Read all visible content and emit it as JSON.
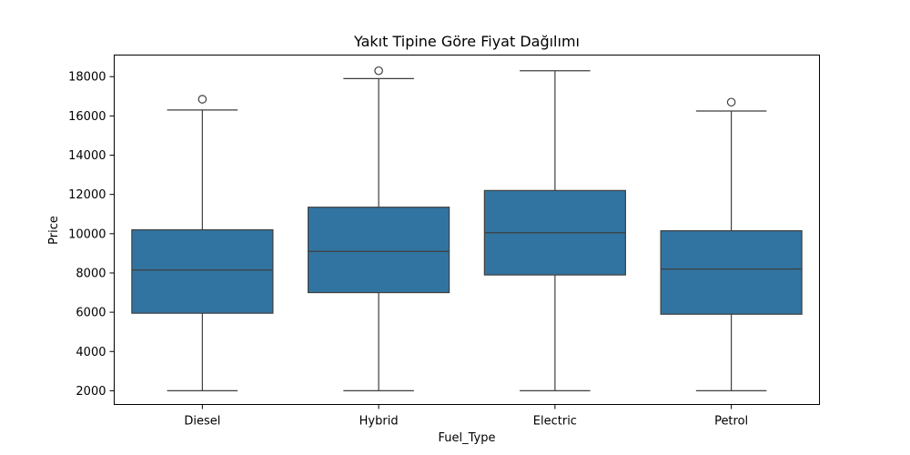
{
  "chart_data": {
    "type": "box",
    "title": "Yakıt Tipine Göre Fiyat Dağılımı",
    "xlabel": "Fuel_Type",
    "ylabel": "Price",
    "ylim": [
      1300,
      19100
    ],
    "yticks": [
      2000,
      4000,
      6000,
      8000,
      10000,
      12000,
      14000,
      16000,
      18000
    ],
    "grid": false,
    "box_color": "#3274a1",
    "line_color": "#3f3f3f",
    "series": [
      {
        "category": "Diesel",
        "whisker_low": 2000,
        "q1": 5950,
        "median": 8150,
        "q3": 10200,
        "whisker_high": 16300,
        "outliers": [
          16850
        ]
      },
      {
        "category": "Hybrid",
        "whisker_low": 2000,
        "q1": 7000,
        "median": 9100,
        "q3": 11350,
        "whisker_high": 17900,
        "outliers": [
          18300
        ]
      },
      {
        "category": "Electric",
        "whisker_low": 2000,
        "q1": 7900,
        "median": 10050,
        "q3": 12200,
        "whisker_high": 18300,
        "outliers": []
      },
      {
        "category": "Petrol",
        "whisker_low": 2000,
        "q1": 5900,
        "median": 8200,
        "q3": 10150,
        "whisker_high": 16250,
        "outliers": [
          16700
        ]
      }
    ]
  }
}
